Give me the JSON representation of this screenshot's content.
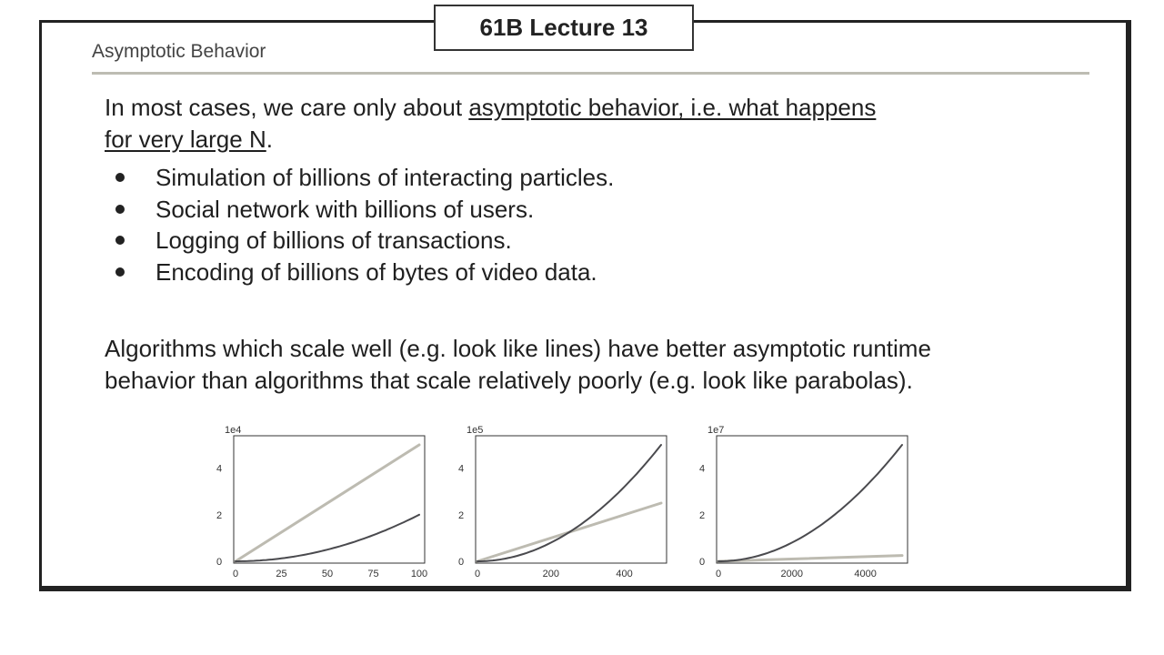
{
  "header": {
    "lecture_label": "61B Lecture 13"
  },
  "section_title": "Asymptotic Behavior",
  "intro": {
    "prefix": "In most cases, we care only about ",
    "underlined_line1": "asymptotic behavior, i.e. what happens",
    "underlined_line2": "for very large N",
    "suffix": "."
  },
  "bullets": [
    "Simulation of billions of interacting particles.",
    "Social network with billions of users.",
    "Logging of billions of transactions.",
    "Encoding of billions of bytes of video data."
  ],
  "closing": {
    "line1": "Algorithms which scale well (e.g. look like lines) have better asymptotic runtime",
    "line2": "behavior than algorithms that scale relatively poorly (e.g. look like parabolas)."
  },
  "colors": {
    "linear": "#bdbbb1",
    "quadratic": "#4a4a4e",
    "frame": "#222222"
  },
  "chart_data": [
    {
      "type": "line",
      "offset_label": "1e4",
      "xlim": [
        0,
        100
      ],
      "ylim": [
        0,
        5
      ],
      "xticks": [
        0,
        25,
        50,
        75,
        100
      ],
      "yticks": [
        0,
        2,
        4
      ],
      "series": [
        {
          "kind": "linear",
          "x": [
            0,
            100
          ],
          "y": [
            0,
            5.0
          ]
        },
        {
          "kind": "quadratic",
          "x": [
            0,
            25,
            50,
            75,
            100
          ],
          "y": [
            0,
            0.125,
            0.5,
            1.125,
            2.0
          ]
        }
      ]
    },
    {
      "type": "line",
      "offset_label": "1e5",
      "xlim": [
        0,
        500
      ],
      "ylim": [
        0,
        5
      ],
      "xticks": [
        0,
        200,
        400
      ],
      "yticks": [
        0,
        2,
        4
      ],
      "series": [
        {
          "kind": "linear",
          "x": [
            0,
            500
          ],
          "y": [
            0,
            2.5
          ]
        },
        {
          "kind": "quadratic",
          "x": [
            0,
            100,
            200,
            300,
            400,
            500
          ],
          "y": [
            0,
            0.2,
            0.8,
            1.8,
            3.2,
            5.0
          ]
        }
      ]
    },
    {
      "type": "line",
      "offset_label": "1e7",
      "xlim": [
        0,
        5000
      ],
      "ylim": [
        0,
        5
      ],
      "xticks": [
        0,
        2000,
        4000
      ],
      "yticks": [
        0,
        2,
        4
      ],
      "series": [
        {
          "kind": "linear",
          "x": [
            0,
            5000
          ],
          "y": [
            0,
            0.25
          ]
        },
        {
          "kind": "quadratic",
          "x": [
            0,
            1000,
            2000,
            3000,
            4000,
            5000
          ],
          "y": [
            0,
            0.2,
            0.8,
            1.8,
            3.2,
            5.0
          ]
        }
      ]
    }
  ]
}
